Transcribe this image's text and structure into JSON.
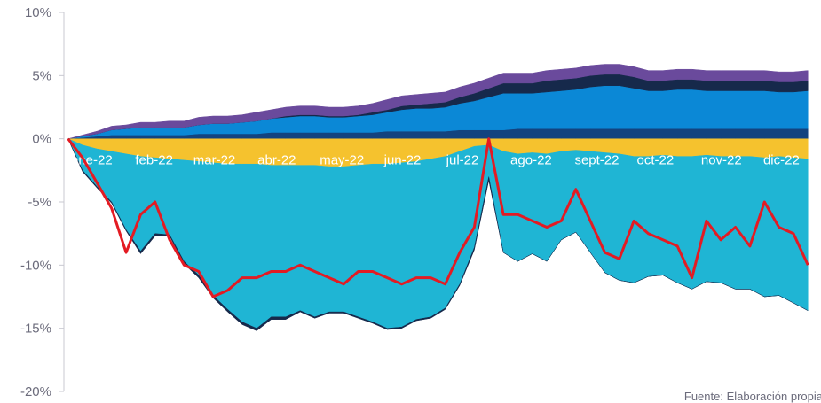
{
  "chart_data": {
    "type": "area",
    "xlabel": "",
    "ylabel": "",
    "ylim": [
      -20,
      10
    ],
    "yticks": [
      {
        "value": 10,
        "label": "10%"
      },
      {
        "value": 5,
        "label": "5%"
      },
      {
        "value": 0,
        "label": "0%"
      },
      {
        "value": -5,
        "label": "-5%"
      },
      {
        "value": -10,
        "label": "-10%"
      },
      {
        "value": -15,
        "label": "-15%"
      },
      {
        "value": -20,
        "label": "-20%"
      }
    ],
    "x": [
      "2022-01-03",
      "2022-01-10",
      "2022-01-17",
      "2022-01-24",
      "2022-01-31",
      "2022-02-07",
      "2022-02-14",
      "2022-02-21",
      "2022-02-28",
      "2022-03-07",
      "2022-03-14",
      "2022-03-21",
      "2022-03-28",
      "2022-04-04",
      "2022-04-11",
      "2022-04-18",
      "2022-04-25",
      "2022-05-02",
      "2022-05-09",
      "2022-05-16",
      "2022-05-23",
      "2022-05-30",
      "2022-06-06",
      "2022-06-13",
      "2022-06-20",
      "2022-06-27",
      "2022-07-04",
      "2022-07-11",
      "2022-07-18",
      "2022-07-25",
      "2022-08-01",
      "2022-08-08",
      "2022-08-15",
      "2022-08-22",
      "2022-08-29",
      "2022-09-05",
      "2022-09-12",
      "2022-09-19",
      "2022-09-26",
      "2022-10-03",
      "2022-10-10",
      "2022-10-17",
      "2022-10-24",
      "2022-10-31",
      "2022-11-07",
      "2022-11-14",
      "2022-11-21",
      "2022-11-28",
      "2022-12-05",
      "2022-12-12",
      "2022-12-19",
      "2022-12-26"
    ],
    "x_tick_labels": [
      "ene-22",
      "feb-22",
      "mar-22",
      "abr-22",
      "may-22",
      "jun-22",
      "jul-22",
      "ago-22",
      "sept-22",
      "oct-22",
      "nov-22",
      "dic-22"
    ],
    "x_ticks_at": [
      "2022-01-01",
      "2022-02-01",
      "2022-03-01",
      "2022-04-01",
      "2022-05-01",
      "2022-06-01",
      "2022-07-01",
      "2022-08-01",
      "2022-09-01",
      "2022-10-01",
      "2022-11-01",
      "2022-12-01"
    ],
    "series_positive": [
      {
        "color": "#13437f",
        "values": [
          0.0,
          0.1,
          0.2,
          0.3,
          0.3,
          0.3,
          0.3,
          0.3,
          0.3,
          0.4,
          0.4,
          0.4,
          0.4,
          0.4,
          0.5,
          0.5,
          0.5,
          0.5,
          0.5,
          0.5,
          0.5,
          0.5,
          0.6,
          0.6,
          0.6,
          0.6,
          0.6,
          0.7,
          0.7,
          0.7,
          0.7,
          0.8,
          0.8,
          0.8,
          0.8,
          0.8,
          0.8,
          0.8,
          0.8,
          0.8,
          0.8,
          0.8,
          0.8,
          0.8,
          0.8,
          0.8,
          0.8,
          0.8,
          0.8,
          0.8,
          0.8,
          0.8
        ]
      },
      {
        "color": "#0b88d6",
        "values": [
          0.0,
          0.1,
          0.2,
          0.4,
          0.5,
          0.6,
          0.6,
          0.6,
          0.6,
          0.7,
          0.8,
          0.8,
          0.9,
          1.0,
          1.1,
          1.2,
          1.3,
          1.3,
          1.2,
          1.2,
          1.3,
          1.4,
          1.5,
          1.7,
          1.8,
          1.8,
          1.9,
          2.1,
          2.3,
          2.6,
          2.9,
          2.8,
          2.8,
          2.9,
          3.0,
          3.1,
          3.3,
          3.4,
          3.4,
          3.2,
          3.0,
          3.0,
          3.1,
          3.1,
          3.0,
          3.0,
          3.0,
          3.0,
          3.0,
          2.9,
          2.9,
          3.0
        ]
      },
      {
        "color": "#16294b",
        "values": [
          0.0,
          0.0,
          0.0,
          0.0,
          0.0,
          0.0,
          0.0,
          0.0,
          0.0,
          0.0,
          0.0,
          0.0,
          0.0,
          0.0,
          0.0,
          0.1,
          0.1,
          0.1,
          0.1,
          0.1,
          0.1,
          0.2,
          0.2,
          0.3,
          0.3,
          0.4,
          0.4,
          0.5,
          0.6,
          0.7,
          0.8,
          0.8,
          0.8,
          0.9,
          0.9,
          0.9,
          0.9,
          0.9,
          0.9,
          0.9,
          0.8,
          0.8,
          0.8,
          0.8,
          0.8,
          0.8,
          0.8,
          0.8,
          0.8,
          0.8,
          0.8,
          0.8
        ]
      },
      {
        "color": "#6a4a9c",
        "values": [
          0.0,
          0.1,
          0.2,
          0.3,
          0.3,
          0.4,
          0.4,
          0.5,
          0.5,
          0.6,
          0.6,
          0.6,
          0.6,
          0.7,
          0.7,
          0.7,
          0.7,
          0.7,
          0.7,
          0.7,
          0.7,
          0.7,
          0.8,
          0.8,
          0.8,
          0.8,
          0.8,
          0.8,
          0.8,
          0.8,
          0.8,
          0.8,
          0.8,
          0.8,
          0.8,
          0.8,
          0.8,
          0.8,
          0.8,
          0.8,
          0.8,
          0.8,
          0.8,
          0.8,
          0.8,
          0.8,
          0.8,
          0.8,
          0.8,
          0.8,
          0.8,
          0.8
        ]
      }
    ],
    "series_negative": [
      {
        "color": "#f5c22e",
        "values": [
          0.0,
          -0.5,
          -0.8,
          -1.0,
          -1.2,
          -1.4,
          -1.5,
          -1.6,
          -1.7,
          -1.8,
          -1.9,
          -2.0,
          -2.0,
          -2.0,
          -2.1,
          -2.1,
          -2.1,
          -2.1,
          -2.2,
          -2.2,
          -2.1,
          -2.0,
          -2.0,
          -1.9,
          -1.8,
          -1.6,
          -1.4,
          -1.0,
          -0.6,
          -0.5,
          -1.0,
          -1.2,
          -1.1,
          -1.2,
          -1.0,
          -0.9,
          -1.0,
          -1.1,
          -1.2,
          -1.4,
          -1.4,
          -1.3,
          -1.4,
          -1.4,
          -1.3,
          -1.4,
          -1.4,
          -1.4,
          -1.5,
          -1.4,
          -1.5,
          -1.6
        ]
      },
      {
        "color": "#1fb5d4",
        "values": [
          0.0,
          -2.0,
          -3.0,
          -4.0,
          -6.0,
          -7.5,
          -6.0,
          -6.0,
          -8.0,
          -9.0,
          -10.5,
          -11.5,
          -12.5,
          -13.0,
          -12.0,
          -12.0,
          -11.5,
          -12.0,
          -11.5,
          -11.5,
          -12.0,
          -12.5,
          -13.0,
          -13.0,
          -12.5,
          -12.5,
          -12.0,
          -10.5,
          -8.0,
          -2.5,
          -8.0,
          -8.5,
          -8.0,
          -8.5,
          -7.0,
          -6.5,
          -8.0,
          -9.5,
          -10.0,
          -10.0,
          -9.5,
          -9.5,
          -10.0,
          -10.5,
          -10.0,
          -10.0,
          -10.5,
          -10.5,
          -11.0,
          -11.0,
          -11.5,
          -12.0
        ]
      },
      {
        "color": "#16294b",
        "values": [
          0.0,
          -0.1,
          -0.1,
          -0.1,
          -0.1,
          -0.2,
          -0.2,
          -0.1,
          -0.2,
          -0.2,
          -0.2,
          -0.2,
          -0.2,
          -0.2,
          -0.2,
          -0.2,
          -0.1,
          -0.1,
          -0.1,
          -0.1,
          -0.1,
          -0.1,
          -0.1,
          -0.1,
          -0.1,
          -0.1,
          -0.1,
          -0.1,
          -0.2,
          -0.3,
          0.0,
          0.0,
          0.0,
          0.0,
          0.0,
          0.0,
          0.0,
          0.0,
          0.0,
          0.0,
          0.0,
          0.0,
          0.0,
          0.0,
          0.0,
          0.0,
          0.0,
          0.0,
          0.0,
          0.0,
          0.0,
          0.0
        ]
      }
    ],
    "line": {
      "color": "#e31b23",
      "values": [
        0.0,
        -1.5,
        -3.5,
        -5.5,
        -9.0,
        -6.0,
        -5.0,
        -8.0,
        -10.0,
        -10.5,
        -12.5,
        -12.0,
        -11.0,
        -11.0,
        -10.5,
        -10.5,
        -10.0,
        -10.5,
        -11.0,
        -11.5,
        -10.5,
        -10.5,
        -11.0,
        -11.5,
        -11.0,
        -11.0,
        -11.5,
        -9.0,
        -7.0,
        0.0,
        -6.0,
        -6.0,
        -6.5,
        -7.0,
        -6.5,
        -4.0,
        -6.5,
        -9.0,
        -9.5,
        -6.5,
        -7.5,
        -8.0,
        -8.5,
        -11.0,
        -6.5,
        -8.0,
        -7.0,
        -8.5,
        -5.0,
        -7.0,
        -7.5,
        -10.0
      ]
    },
    "source": "Fuente: Elaboración propia"
  }
}
